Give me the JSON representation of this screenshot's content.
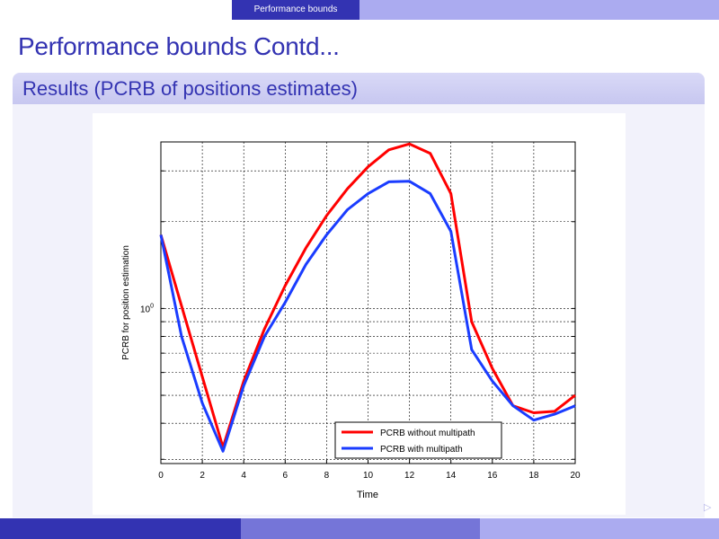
{
  "header": {
    "section": "Performance bounds"
  },
  "frame": {
    "title": "Performance bounds Contd...",
    "block_title": "Results (PCRB of positions estimates)"
  },
  "chart_data": {
    "type": "line",
    "x": [
      0,
      1,
      2,
      3,
      4,
      5,
      6,
      7,
      8,
      9,
      10,
      11,
      12,
      13,
      14,
      15,
      16,
      17,
      18,
      19,
      20
    ],
    "series": [
      {
        "name": "PCRB without multipath",
        "color": "#ff0000",
        "values": [
          1.8,
          1.02,
          0.58,
          0.33,
          0.56,
          0.85,
          1.2,
          1.62,
          2.1,
          2.6,
          3.1,
          3.55,
          3.72,
          3.45,
          2.5,
          0.9,
          0.62,
          0.46,
          0.435,
          0.44,
          0.5
        ]
      },
      {
        "name": "PCRB with multipath",
        "color": "#1a3cff",
        "values": [
          1.8,
          0.8,
          0.47,
          0.32,
          0.54,
          0.8,
          1.05,
          1.42,
          1.8,
          2.2,
          2.5,
          2.75,
          2.76,
          2.5,
          1.85,
          0.72,
          0.56,
          0.46,
          0.41,
          0.43,
          0.46
        ]
      }
    ],
    "xlabel": "Time",
    "ylabel": "PCRB for position estimation",
    "xlim": [
      0,
      20
    ],
    "ylim": [
      0.29,
      3.78
    ],
    "yscale": "log",
    "xticks": [
      "0",
      "2",
      "4",
      "6",
      "8",
      "10",
      "12",
      "14",
      "16",
      "18",
      "20"
    ],
    "yticks": [
      {
        "value": 1,
        "label": "10",
        "exp": "0"
      }
    ],
    "grid": true,
    "legend_position": "bottom-right"
  }
}
